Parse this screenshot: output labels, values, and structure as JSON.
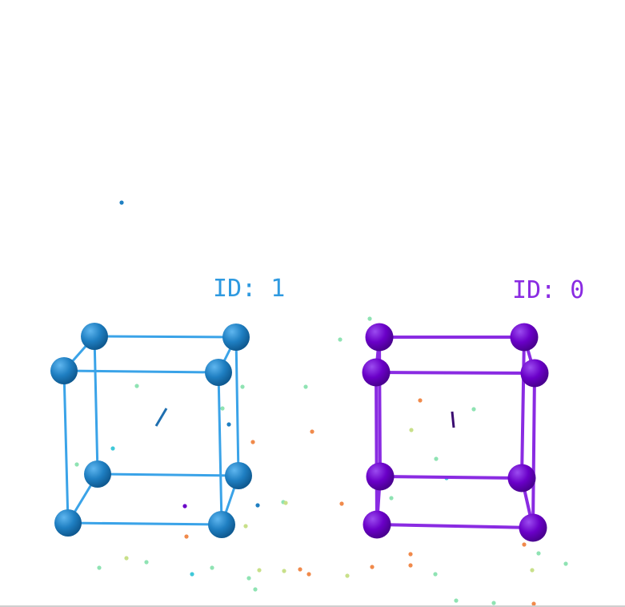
{
  "scene": {
    "background": "#ffffff",
    "objects": [
      {
        "label": "ID: 1",
        "color": "#1f7fc2",
        "edge_color": "#3aa3e8",
        "label_color": "#2f9ae0"
      },
      {
        "label": "ID: 0",
        "color": "#6a00c8",
        "edge_color": "#8a2be2",
        "label_color": "#8a2be2"
      }
    ],
    "point_colors": [
      "#8fe3b3",
      "#f08a4b",
      "#3fc8d8",
      "#c8e08a",
      "#1f7fc2",
      "#6a00c8"
    ]
  }
}
